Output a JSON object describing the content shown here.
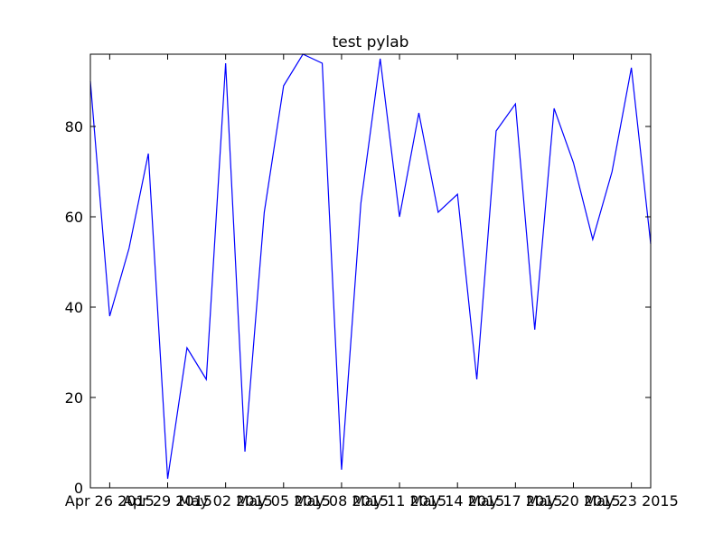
{
  "chart_data": {
    "type": "line",
    "title": "test pylab",
    "xlabel": "",
    "ylabel": "",
    "x": [
      "2015-04-25",
      "2015-04-26",
      "2015-04-27",
      "2015-04-28",
      "2015-04-29",
      "2015-04-30",
      "2015-05-01",
      "2015-05-02",
      "2015-05-03",
      "2015-05-04",
      "2015-05-05",
      "2015-05-06",
      "2015-05-07",
      "2015-05-08",
      "2015-05-09",
      "2015-05-10",
      "2015-05-11",
      "2015-05-12",
      "2015-05-13",
      "2015-05-14",
      "2015-05-15",
      "2015-05-16",
      "2015-05-17",
      "2015-05-18",
      "2015-05-19",
      "2015-05-20",
      "2015-05-21",
      "2015-05-22",
      "2015-05-23",
      "2015-05-24"
    ],
    "series": [
      {
        "values": [
          90,
          38,
          53,
          74,
          2,
          31,
          24,
          94,
          8,
          61,
          89,
          96,
          94,
          4,
          63,
          95,
          60,
          83,
          61,
          65,
          24,
          79,
          85,
          35,
          84,
          72,
          55,
          70,
          93,
          54
        ],
        "color": "#0000ff"
      }
    ],
    "xlim": [
      "2015-04-25",
      "2015-05-24"
    ],
    "ylim": [
      0,
      96
    ],
    "xticks": [
      "2015-04-26",
      "2015-04-29",
      "2015-05-02",
      "2015-05-05",
      "2015-05-08",
      "2015-05-11",
      "2015-05-14",
      "2015-05-17",
      "2015-05-20",
      "2015-05-23"
    ],
    "xtick_labels": [
      "Apr 26 2015",
      "Apr 29 2015",
      "May 02 2015",
      "May 05 2015",
      "May 08 2015",
      "May 11 2015",
      "May 14 2015",
      "May 17 2015",
      "May 20 2015",
      "May 23 2015"
    ],
    "yticks": [
      0,
      20,
      40,
      60,
      80
    ],
    "ytick_labels": [
      "0",
      "20",
      "40",
      "60",
      "80"
    ],
    "grid": false,
    "legend": "none"
  }
}
